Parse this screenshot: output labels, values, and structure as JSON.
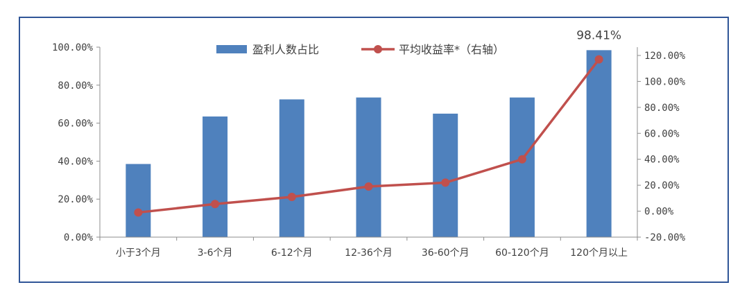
{
  "chart_data": {
    "type": "bar",
    "categories": [
      "小于3个月",
      "3-6个月",
      "6-12个月",
      "12-36个月",
      "36-60个月",
      "60-120个月",
      "120个月以上"
    ],
    "series": [
      {
        "name": "盈利人数占比",
        "type": "bar",
        "axis": "left",
        "color": "#4f81bd",
        "values": [
          38.5,
          63.5,
          72.5,
          73.5,
          65.0,
          73.5,
          98.41
        ]
      },
      {
        "name": "平均收益率*（右轴）",
        "type": "line",
        "axis": "right",
        "color": "#c0504d",
        "values": [
          -1.0,
          5.5,
          11.0,
          19.0,
          22.0,
          40.0,
          117.0
        ]
      }
    ],
    "left_axis": {
      "ylim": [
        0,
        100
      ],
      "ticks": [
        0,
        20,
        40,
        60,
        80,
        100
      ],
      "tick_labels": [
        "0.00%",
        "20.00%",
        "40.00%",
        "60.00%",
        "80.00%",
        "100.00%"
      ]
    },
    "right_axis": {
      "ylim": [
        -20,
        120
      ],
      "ticks": [
        -20,
        0,
        20,
        40,
        60,
        80,
        100,
        120
      ],
      "tick_labels": [
        "-20.00%",
        "0.00%",
        "20.00%",
        "40.00%",
        "60.00%",
        "80.00%",
        "100.00%",
        "120.00%"
      ]
    },
    "data_labels": [
      {
        "series": 0,
        "index": 6,
        "text": "98.41%"
      }
    ],
    "legend_position": "top-center",
    "grid": false,
    "frame_color": "#2f5597"
  }
}
